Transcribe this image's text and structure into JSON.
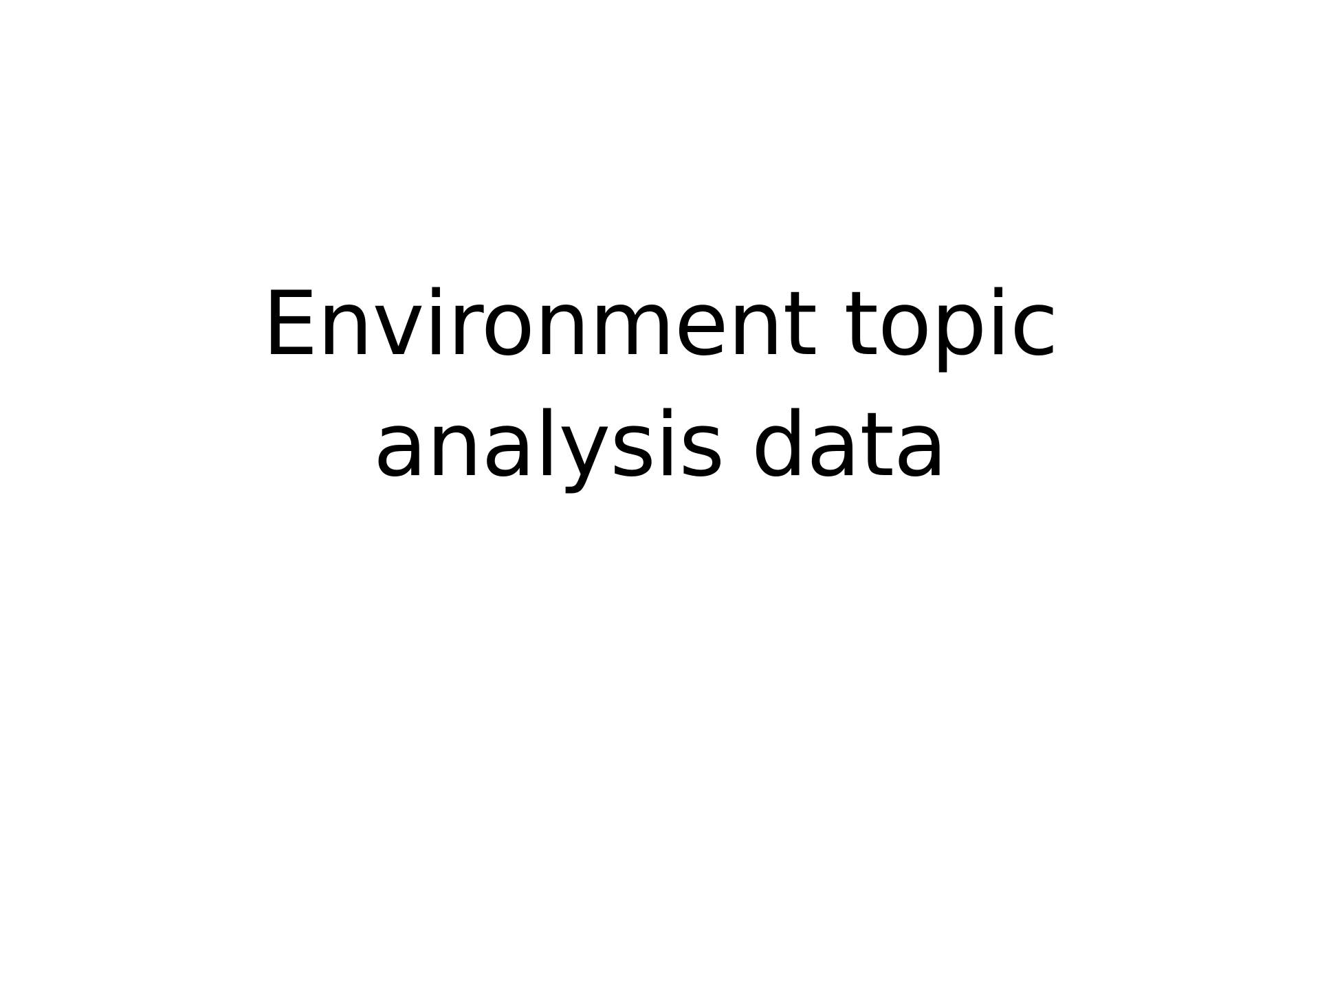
{
  "slide": {
    "title_lines": [
      "Environment topic",
      "analysis data"
    ],
    "text_color": "#000000",
    "background_color": "#ffffff"
  }
}
